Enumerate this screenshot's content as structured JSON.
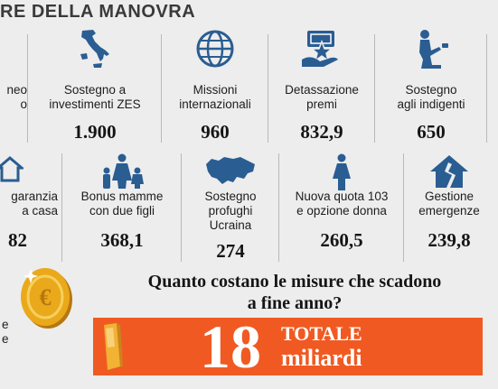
{
  "header": {
    "title": "RE DELLA MANOVRA"
  },
  "row1": [
    {
      "label": "neo\no",
      "value": "",
      "icon": "document-icon"
    },
    {
      "label": "Sostegno a\ninvestimenti ZES",
      "value": "1.900",
      "icon": "italy-map-icon"
    },
    {
      "label": "Missioni\ninternazionali",
      "value": "960",
      "icon": "globe-icon"
    },
    {
      "label": "Detassazione\npremi",
      "value": "832,9",
      "icon": "money-hand-icon"
    },
    {
      "label": "Sostegno\nagli indigenti",
      "value": "650",
      "icon": "kneeling-person-icon"
    }
  ],
  "row2": [
    {
      "label": "garanzia\na casa",
      "value": "82",
      "icon": "house-icon"
    },
    {
      "label": "Bonus mamme\ncon due figli",
      "value": "368,1",
      "icon": "mother-children-icon"
    },
    {
      "label": "Sostegno\nprofughi\nUcraina",
      "value": "274",
      "icon": "ukraine-map-icon"
    },
    {
      "label": "Nuova quota 103\ne opzione donna",
      "value": "260,5",
      "icon": "woman-icon"
    },
    {
      "label": "Gestione\nemergenze",
      "value": "239,8",
      "icon": "cracked-house-icon"
    }
  ],
  "side_text": "e\ne",
  "question": "Quanto costano le misure che scadono\na fine anno?",
  "banner": {
    "number": "18",
    "total_label": "TOTALE",
    "unit_label": "miliardi"
  },
  "colors": {
    "accent": "#f05a22",
    "icon_blue": "#2a5d92",
    "coin": "#e9a91a",
    "background": "#ededed"
  }
}
